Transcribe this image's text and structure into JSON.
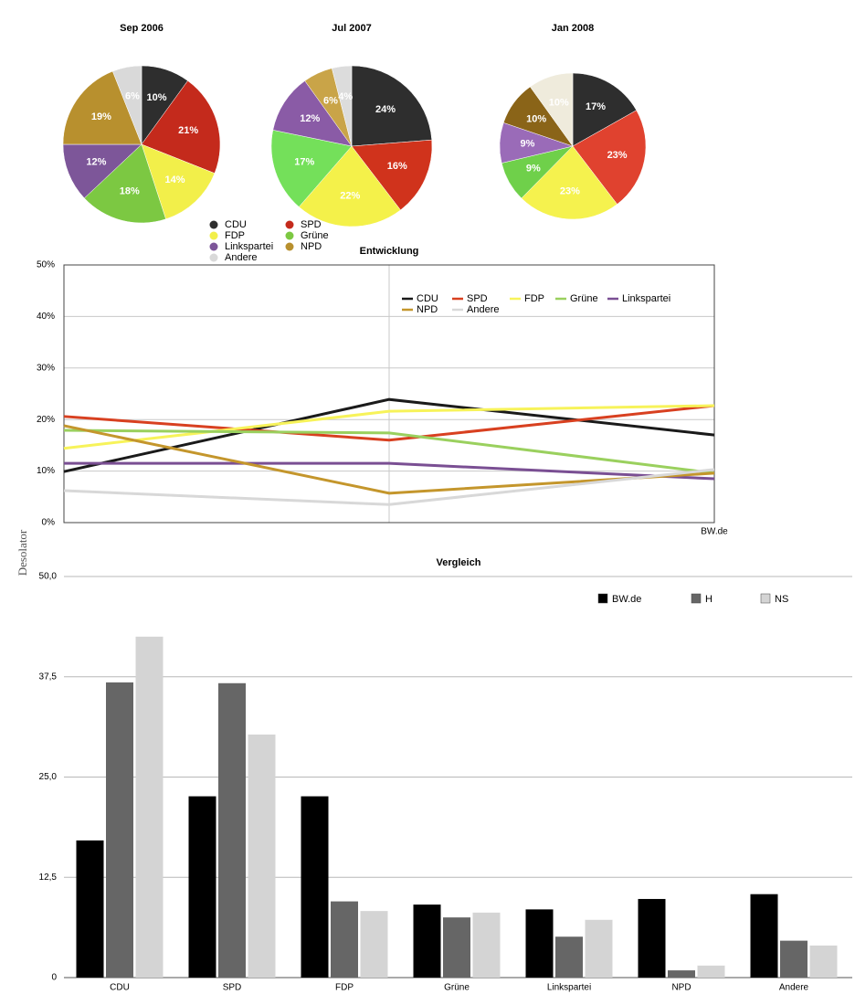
{
  "watermark": "Desolator",
  "chart_data": [
    {
      "type": "pie",
      "title": "Sep 2006",
      "categories": [
        "CDU",
        "SPD",
        "FDP",
        "Grüne",
        "Linkspartei",
        "NPD",
        "Andere"
      ],
      "values": [
        10,
        21,
        14,
        18,
        12,
        19,
        6
      ],
      "value_labels": [
        "10%",
        "21%",
        "14%",
        "18%",
        "12%",
        "19%",
        "6%"
      ],
      "colors": [
        "#2e2e2e",
        "#c42a1c",
        "#f2ef4a",
        "#7cc842",
        "#7d5699",
        "#b8902e",
        "#d9d9d9"
      ]
    },
    {
      "type": "pie",
      "title": "Jul 2007",
      "categories": [
        "CDU",
        "SPD",
        "FDP",
        "Grüne",
        "Linkspartei",
        "NPD",
        "Andere"
      ],
      "values": [
        24,
        16,
        22,
        17,
        12,
        6,
        4
      ],
      "value_labels": [
        "24%",
        "16%",
        "22%",
        "17%",
        "12%",
        "6%",
        "4%"
      ],
      "colors": [
        "#2e2e2e",
        "#d0331c",
        "#f4f14a",
        "#74e05a",
        "#8a5ba6",
        "#c9a448",
        "#dcdcdc"
      ]
    },
    {
      "type": "pie",
      "title": "Jan 2008",
      "categories": [
        "CDU",
        "SPD",
        "FDP",
        "Grüne",
        "Linkspartei",
        "NPD",
        "Andere"
      ],
      "values": [
        17,
        23,
        23,
        9,
        9,
        10,
        10
      ],
      "value_labels": [
        "17%",
        "23%",
        "23%",
        "9%",
        "9%",
        "10%",
        "10%"
      ],
      "colors": [
        "#2e2e2e",
        "#e0422f",
        "#f5f24e",
        "#6fd04a",
        "#9a6bb8",
        "#8a6418",
        "#efebdc"
      ]
    },
    {
      "type": "line",
      "title": "Entwicklung",
      "categories": [
        null,
        null,
        "BW.de"
      ],
      "series": [
        {
          "name": "CDU",
          "color": "#1a1a1a",
          "values": [
            9.9,
            23.9,
            17
          ]
        },
        {
          "name": "SPD",
          "color": "#d84020",
          "values": [
            20.6,
            16,
            22.7
          ]
        },
        {
          "name": "FDP",
          "color": "#f7f35a",
          "values": [
            14.4,
            21.6,
            22.7
          ]
        },
        {
          "name": "Grüne",
          "color": "#9ad05e",
          "values": [
            17.9,
            17.4,
            9.6
          ]
        },
        {
          "name": "Linkspartei",
          "color": "#7a4f93",
          "values": [
            11.5,
            11.5,
            8.5
          ]
        },
        {
          "name": "NPD",
          "color": "#c4962c",
          "values": [
            18.8,
            5.7,
            9.6
          ]
        },
        {
          "name": "Andere",
          "color": "#d8d8d8",
          "values": [
            6.2,
            3.5,
            10.3
          ]
        }
      ],
      "ylim": [
        0,
        50
      ],
      "yticks": [
        {
          "value": 0,
          "label": "0%"
        },
        {
          "value": 10,
          "label": "10%"
        },
        {
          "value": 20,
          "label": "20%"
        },
        {
          "value": 30,
          "label": "30%"
        },
        {
          "value": 40,
          "label": "40%"
        },
        {
          "value": 50,
          "label": "50%"
        }
      ],
      "grid": true
    },
    {
      "type": "bar",
      "title": "Vergleich",
      "categories": [
        "CDU",
        "SPD",
        "FDP",
        "Grüne",
        "Linkspartei",
        "NPD",
        "Andere"
      ],
      "series": [
        {
          "name": "BW.de",
          "color": "#000000",
          "values": [
            17.1,
            22.6,
            22.6,
            9.1,
            8.5,
            9.8,
            10.4
          ]
        },
        {
          "name": "H",
          "color": "#666666",
          "values": [
            36.8,
            36.7,
            9.5,
            7.5,
            5.1,
            0.9,
            4.6
          ]
        },
        {
          "name": "NS",
          "color": "#d4d4d4",
          "values": [
            42.5,
            30.3,
            8.3,
            8.1,
            7.2,
            1.5,
            4.0
          ]
        }
      ],
      "ylim": [
        0,
        50
      ],
      "yticks": [
        0,
        {
          "value": 12.5,
          "label": "12,5"
        },
        {
          "value": 25,
          "label": "25,0"
        },
        {
          "value": 37.5,
          "label": "37,5"
        },
        {
          "value": 50,
          "label": "50,0"
        }
      ],
      "grid": true
    }
  ]
}
